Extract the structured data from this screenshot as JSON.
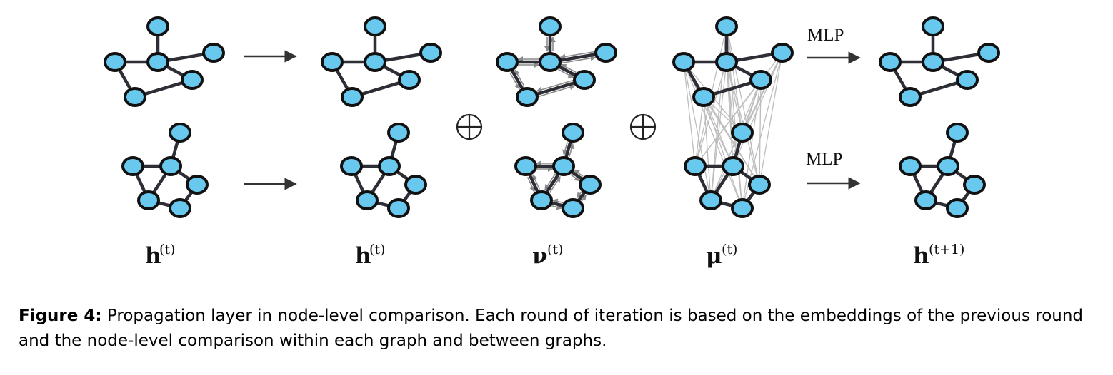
{
  "arrow_labels": {
    "mlp_top": "MLP",
    "mlp_bottom": "MLP"
  },
  "columns": [
    {
      "symbol": "h",
      "superscript": "(t)"
    },
    {
      "symbol": "h",
      "superscript": "(t)"
    },
    {
      "symbol": "ν",
      "superscript": "(t)"
    },
    {
      "symbol": "μ",
      "superscript": "(t)"
    },
    {
      "symbol": "h",
      "superscript": "(t+1)"
    }
  ],
  "operators": [
    "⊕",
    "⊕"
  ],
  "caption": {
    "label": "Figure 4:",
    "text": "Propagation layer in node-level comparison. Each round of iteration is based on the embeddings of the previous round and the node-level comparison within each graph and between graphs."
  },
  "colors": {
    "node_fill": "#68c8ee",
    "node_stroke": "#111111",
    "edge": "#2e2e36",
    "message": "#8a8a8a",
    "cross_graph": "#bdbdbd"
  }
}
